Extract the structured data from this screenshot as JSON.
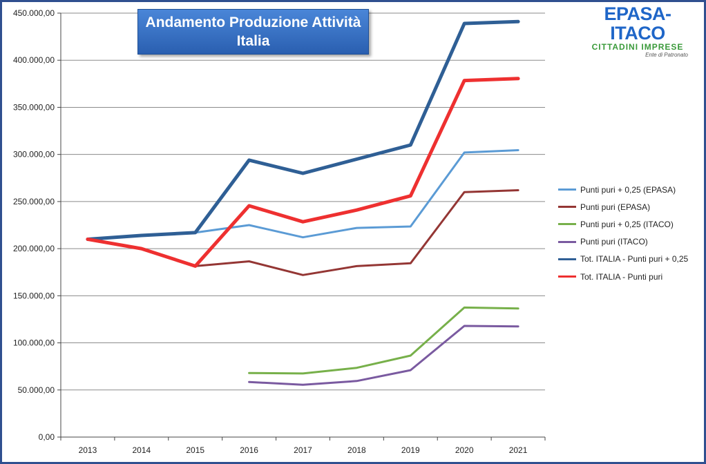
{
  "title": {
    "line1": "Andamento Produzione Attività",
    "line2": "Italia"
  },
  "logo": {
    "main": "EPASA-ITACO",
    "sub": "CITTADINI IMPRESE",
    "sub2": "Ente di Patronato"
  },
  "chart_data": {
    "type": "line",
    "title": "Andamento Produzione Attività Italia",
    "xlabel": "",
    "ylabel": "",
    "categories": [
      "2013",
      "2014",
      "2015",
      "2016",
      "2017",
      "2018",
      "2019",
      "2020",
      "2021"
    ],
    "ylim": [
      0,
      450000
    ],
    "y_ticks": [
      0,
      50000,
      100000,
      150000,
      200000,
      250000,
      300000,
      350000,
      400000,
      450000
    ],
    "y_tick_labels": [
      "0,00",
      "50.000,00",
      "100.000,00",
      "150.000,00",
      "200.000,00",
      "250.000,00",
      "300.000,00",
      "350.000,00",
      "400.000,00",
      "450.000,00"
    ],
    "grid": true,
    "legend_position": "right",
    "series": [
      {
        "name": "Punti puri + 0,25 (EPASA)",
        "color": "#5b9bd5",
        "width": 3,
        "values": [
          210000,
          214000,
          217000,
          225000,
          212000,
          222000,
          223500,
          302000,
          304500
        ]
      },
      {
        "name": "Punti puri (EPASA)",
        "color": "#943634",
        "width": 3,
        "values": [
          210000,
          200000,
          181500,
          186500,
          172000,
          181500,
          184500,
          260000,
          262000
        ]
      },
      {
        "name": "Punti puri + 0,25 (ITACO)",
        "color": "#77b04a",
        "width": 3,
        "values": [
          null,
          null,
          null,
          68000,
          67500,
          73500,
          86500,
          137500,
          136500
        ]
      },
      {
        "name": "Punti puri (ITACO)",
        "color": "#7a5aa0",
        "width": 3,
        "values": [
          null,
          null,
          null,
          58500,
          55500,
          59500,
          71000,
          118000,
          117500
        ]
      },
      {
        "name": "Tot. ITALIA - Punti puri + 0,25",
        "color": "#2f5f95",
        "width": 5,
        "values": [
          210000,
          214000,
          217000,
          294000,
          280000,
          295000,
          310000,
          439000,
          441000
        ]
      },
      {
        "name": "Tot. ITALIA - Punti puri",
        "color": "#ee3030",
        "width": 5,
        "values": [
          210000,
          200000,
          181500,
          245500,
          228500,
          241000,
          256000,
          378500,
          380500
        ]
      }
    ]
  }
}
